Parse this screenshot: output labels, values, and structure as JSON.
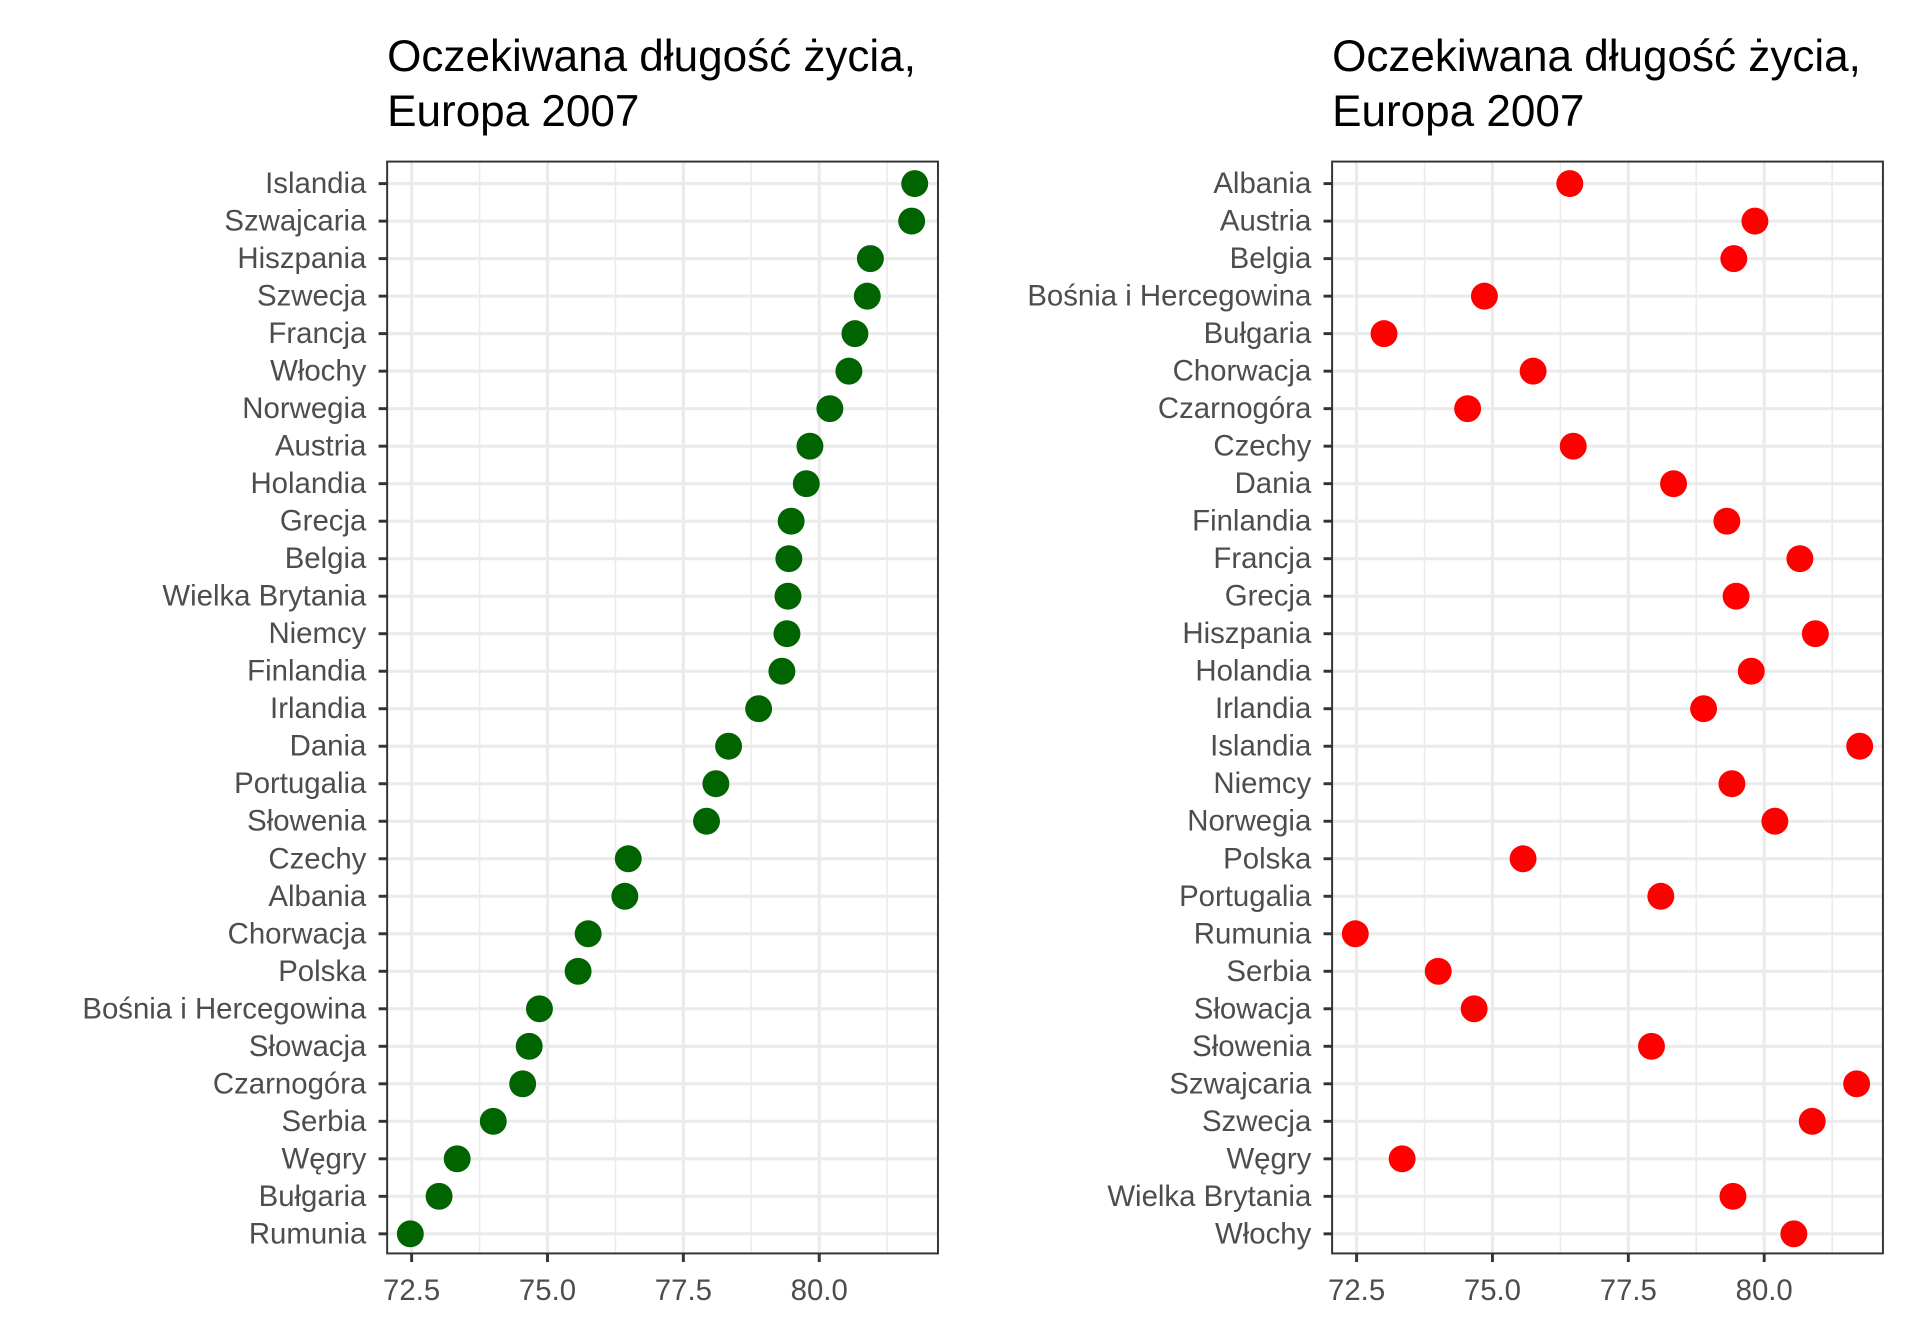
{
  "chart_data": [
    {
      "type": "scatter",
      "title_lines": [
        "Oczekiwana długość życia,",
        "Europa 2007"
      ],
      "color": "#006400",
      "order": "sorted by value",
      "xlim": [
        72.05,
        82.2
      ],
      "xticks": [
        "72.5",
        "75.0",
        "77.5",
        "80.0"
      ],
      "xtick_values": [
        72.5,
        75.0,
        77.5,
        80.0
      ],
      "grid": true,
      "categories": [
        "Islandia",
        "Szwajcaria",
        "Hiszpania",
        "Szwecja",
        "Francja",
        "Włochy",
        "Norwegia",
        "Austria",
        "Holandia",
        "Grecja",
        "Belgia",
        "Wielka Brytania",
        "Niemcy",
        "Finlandia",
        "Irlandia",
        "Dania",
        "Portugalia",
        "Słowenia",
        "Czechy",
        "Albania",
        "Chorwacja",
        "Polska",
        "Bośnia i Hercegowina",
        "Słowacja",
        "Czarnogóra",
        "Serbia",
        "Węgry",
        "Bułgaria",
        "Rumunia"
      ],
      "values": [
        81.757,
        81.701,
        80.941,
        80.884,
        80.657,
        80.546,
        80.196,
        79.829,
        79.762,
        79.483,
        79.441,
        79.425,
        79.406,
        79.313,
        78.885,
        78.332,
        78.098,
        77.926,
        76.486,
        76.423,
        75.748,
        75.563,
        74.852,
        74.663,
        74.543,
        74.002,
        73.338,
        73.005,
        72.476
      ]
    },
    {
      "type": "scatter",
      "title_lines": [
        "Oczekiwana długość życia,",
        "Europa 2007"
      ],
      "color": "#FF0000",
      "order": "alphabetical",
      "xlim": [
        72.05,
        82.2
      ],
      "xticks": [
        "72.5",
        "75.0",
        "77.5",
        "80.0"
      ],
      "xtick_values": [
        72.5,
        75.0,
        77.5,
        80.0
      ],
      "grid": true,
      "categories": [
        "Albania",
        "Austria",
        "Belgia",
        "Bośnia i Hercegowina",
        "Bułgaria",
        "Chorwacja",
        "Czarnogóra",
        "Czechy",
        "Dania",
        "Finlandia",
        "Francja",
        "Grecja",
        "Hiszpania",
        "Holandia",
        "Irlandia",
        "Islandia",
        "Niemcy",
        "Norwegia",
        "Polska",
        "Portugalia",
        "Rumunia",
        "Serbia",
        "Słowacja",
        "Słowenia",
        "Szwajcaria",
        "Szwecja",
        "Węgry",
        "Wielka Brytania",
        "Włochy"
      ],
      "values": [
        76.423,
        79.829,
        79.441,
        74.852,
        73.005,
        75.748,
        74.543,
        76.486,
        78.332,
        79.313,
        80.657,
        79.483,
        80.941,
        79.762,
        78.885,
        81.757,
        79.406,
        80.196,
        75.563,
        78.098,
        72.476,
        74.002,
        74.663,
        77.926,
        81.701,
        80.884,
        73.338,
        79.425,
        80.546
      ]
    }
  ]
}
